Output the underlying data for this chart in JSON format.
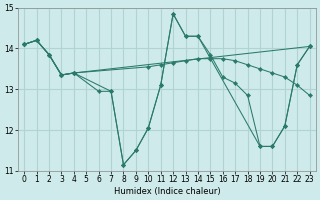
{
  "xlabel": "Humidex (Indice chaleur)",
  "xlim": [
    -0.5,
    23.5
  ],
  "ylim": [
    11,
    15
  ],
  "xticks": [
    0,
    1,
    2,
    3,
    4,
    5,
    6,
    7,
    8,
    9,
    10,
    11,
    12,
    13,
    14,
    15,
    16,
    17,
    18,
    19,
    20,
    21,
    22,
    23
  ],
  "yticks": [
    11,
    12,
    13,
    14,
    15
  ],
  "background_color": "#ceeaea",
  "grid_color": "#b0d4d4",
  "line_color": "#2a7a6a",
  "lines": [
    {
      "x": [
        0,
        1,
        2,
        3,
        4,
        10,
        11,
        12,
        13,
        14,
        15,
        16,
        17,
        18,
        19,
        20,
        21,
        22,
        23
      ],
      "y": [
        14.1,
        14.2,
        13.85,
        13.35,
        13.4,
        13.55,
        13.6,
        13.65,
        13.7,
        13.75,
        13.75,
        13.75,
        13.7,
        13.6,
        13.5,
        13.4,
        13.3,
        13.1,
        12.85
      ]
    },
    {
      "x": [
        0,
        1,
        2,
        3,
        4,
        7,
        8,
        9,
        10,
        11,
        12,
        13,
        14,
        15,
        16,
        17,
        18,
        19,
        20,
        21,
        22,
        23
      ],
      "y": [
        14.1,
        14.2,
        13.85,
        13.35,
        13.4,
        12.95,
        11.15,
        11.5,
        12.05,
        13.1,
        14.85,
        14.3,
        14.3,
        13.85,
        13.3,
        13.15,
        12.85,
        11.6,
        11.6,
        12.1,
        13.6,
        14.05
      ]
    },
    {
      "x": [
        0,
        1,
        2,
        3,
        4,
        23
      ],
      "y": [
        14.1,
        14.2,
        13.85,
        13.35,
        13.4,
        14.05
      ]
    },
    {
      "x": [
        0,
        1,
        2,
        3,
        4,
        6,
        7,
        8,
        9,
        10,
        11,
        12,
        13,
        14,
        19,
        20,
        21,
        22,
        23
      ],
      "y": [
        14.1,
        14.2,
        13.85,
        13.35,
        13.4,
        12.95,
        12.95,
        11.15,
        11.5,
        12.05,
        13.1,
        14.85,
        14.3,
        14.3,
        11.6,
        11.6,
        12.1,
        13.6,
        14.05
      ]
    }
  ]
}
